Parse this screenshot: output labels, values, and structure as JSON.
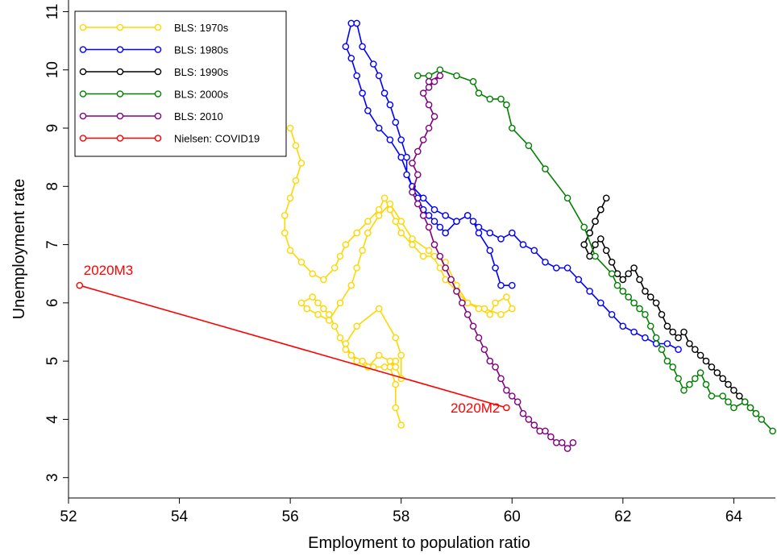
{
  "chart_data": {
    "type": "line",
    "xlabel": "Employment to population ratio",
    "ylabel": "Unemployment rate",
    "xlim": [
      52,
      64.75
    ],
    "ylim": [
      2.65,
      11.2
    ],
    "xticks": [
      52,
      54,
      56,
      58,
      60,
      62,
      64
    ],
    "yticks": [
      3,
      4,
      5,
      6,
      7,
      8,
      9,
      10,
      11
    ],
    "grid": false,
    "legend_position": "top-left",
    "marker": "hollow-circle",
    "series": [
      {
        "name": "BLS: 1970s",
        "color": "#FFD700",
        "x": [
          58.0,
          57.9,
          57.9,
          57.8,
          57.9,
          57.7,
          57.5,
          57.3,
          57.1,
          57.0,
          57.2,
          57.6,
          57.9,
          58.0,
          58.0,
          57.9,
          57.8,
          57.6,
          57.4,
          57.2,
          57.0,
          56.9,
          56.8,
          56.7,
          56.6,
          56.5,
          56.4,
          56.2,
          56.3,
          56.5,
          56.7,
          56.9,
          57.1,
          57.2,
          57.3,
          57.4,
          57.6,
          57.8,
          58.0,
          58.2,
          58.5,
          58.7,
          58.8,
          59.0,
          59.2,
          59.5,
          59.8,
          60.0,
          59.9,
          59.7,
          59.6,
          59.4,
          59.2,
          59.0,
          58.8,
          58.6,
          58.4,
          58.2,
          58.0,
          57.9,
          57.8,
          57.7,
          57.6,
          57.4,
          57.2,
          57.0,
          56.9,
          56.8,
          56.6,
          56.4,
          56.2,
          56.0,
          55.9,
          55.9,
          56.0,
          56.1,
          56.2,
          56.1,
          56.0
        ],
        "y": [
          3.9,
          4.2,
          4.6,
          4.9,
          5.0,
          4.9,
          4.9,
          5.0,
          5.1,
          5.3,
          5.6,
          5.9,
          5.4,
          5.1,
          4.7,
          4.9,
          5.0,
          5.1,
          4.9,
          5.0,
          5.2,
          5.4,
          5.6,
          5.8,
          5.9,
          6.0,
          6.1,
          6.0,
          5.9,
          5.8,
          5.7,
          6.0,
          6.3,
          6.6,
          6.9,
          7.2,
          7.5,
          7.7,
          7.4,
          7.1,
          6.9,
          6.6,
          6.4,
          6.2,
          6.0,
          5.9,
          5.8,
          5.9,
          6.1,
          6.0,
          5.8,
          5.9,
          6.0,
          6.3,
          6.7,
          6.8,
          6.8,
          7.0,
          7.2,
          7.4,
          7.6,
          7.8,
          7.6,
          7.4,
          7.2,
          7.0,
          6.8,
          6.6,
          6.4,
          6.5,
          6.7,
          6.9,
          7.2,
          7.5,
          7.8,
          8.1,
          8.4,
          8.7,
          9.0
        ]
      },
      {
        "name": "BLS: 1980s",
        "color": "#0000FF",
        "x": [
          60.0,
          59.8,
          59.7,
          59.6,
          59.4,
          59.3,
          59.2,
          59.0,
          58.8,
          58.6,
          58.4,
          58.2,
          58.0,
          57.8,
          57.6,
          57.4,
          57.3,
          57.2,
          57.1,
          57.0,
          57.1,
          57.2,
          57.3,
          57.5,
          57.6,
          57.7,
          57.8,
          57.9,
          58.0,
          58.1,
          58.1,
          58.2,
          58.3,
          58.4,
          58.5,
          58.6,
          58.7,
          58.8,
          59.0,
          59.2,
          59.4,
          59.6,
          59.8,
          60.0,
          60.2,
          60.4,
          60.6,
          60.8,
          61.0,
          61.2,
          61.4,
          61.6,
          61.8,
          62.0,
          62.2,
          62.4,
          62.6,
          62.8,
          63.0
        ],
        "y": [
          6.3,
          6.3,
          6.6,
          6.9,
          7.2,
          7.4,
          7.5,
          7.4,
          7.5,
          7.6,
          7.8,
          8.0,
          8.5,
          8.8,
          9.0,
          9.3,
          9.6,
          9.9,
          10.2,
          10.4,
          10.8,
          10.8,
          10.4,
          10.1,
          9.9,
          9.6,
          9.4,
          9.1,
          8.8,
          8.5,
          8.2,
          8.0,
          7.8,
          7.6,
          7.5,
          7.4,
          7.3,
          7.2,
          7.4,
          7.5,
          7.3,
          7.2,
          7.1,
          7.2,
          7.0,
          6.9,
          6.7,
          6.6,
          6.6,
          6.4,
          6.2,
          6.0,
          5.8,
          5.6,
          5.5,
          5.4,
          5.3,
          5.3,
          5.2
        ]
      },
      {
        "name": "BLS: 1990s",
        "color": "#000000",
        "x": [
          61.4,
          61.5,
          61.6,
          61.7,
          61.6,
          61.5,
          61.4,
          61.3,
          61.4,
          61.5,
          61.6,
          61.7,
          61.8,
          61.9,
          62.0,
          62.1,
          62.2,
          62.3,
          62.4,
          62.5,
          62.6,
          62.7,
          62.8,
          62.9,
          63.0,
          63.1,
          63.2,
          63.3,
          63.4,
          63.5,
          63.6,
          63.7,
          63.8,
          63.9,
          64.0,
          64.1,
          64.2,
          64.3,
          64.4
        ],
        "y": [
          7.2,
          7.4,
          7.6,
          7.8,
          7.6,
          7.4,
          7.2,
          7.0,
          6.8,
          7.0,
          7.1,
          6.9,
          6.7,
          6.5,
          6.4,
          6.5,
          6.6,
          6.4,
          6.2,
          6.1,
          6.0,
          5.8,
          5.6,
          5.5,
          5.4,
          5.5,
          5.3,
          5.2,
          5.1,
          5.0,
          4.9,
          4.8,
          4.7,
          4.6,
          4.5,
          4.4,
          4.3,
          4.2,
          4.1
        ]
      },
      {
        "name": "BLS: 2000s",
        "color": "#008000",
        "x": [
          64.7,
          64.5,
          64.4,
          64.3,
          64.2,
          64.0,
          63.9,
          63.8,
          63.6,
          63.5,
          63.4,
          63.3,
          63.2,
          63.1,
          63.0,
          62.9,
          62.8,
          62.7,
          62.6,
          62.5,
          62.4,
          62.3,
          62.2,
          62.1,
          62.0,
          61.9,
          61.8,
          61.5,
          61.3,
          61.0,
          60.6,
          60.3,
          60.0,
          59.9,
          59.8,
          59.6,
          59.4,
          59.3,
          59.0,
          58.7,
          58.5,
          58.3
        ],
        "y": [
          3.8,
          4.0,
          4.1,
          4.2,
          4.3,
          4.2,
          4.3,
          4.4,
          4.4,
          4.6,
          4.8,
          4.7,
          4.6,
          4.5,
          4.7,
          4.9,
          5.0,
          5.2,
          5.4,
          5.6,
          5.8,
          5.9,
          6.0,
          6.1,
          6.2,
          6.3,
          6.5,
          6.8,
          7.3,
          7.8,
          8.3,
          8.7,
          9.0,
          9.4,
          9.5,
          9.5,
          9.6,
          9.8,
          9.9,
          10.0,
          9.9,
          9.9
        ]
      },
      {
        "name": "BLS: 2010",
        "color": "#800080",
        "x": [
          58.5,
          58.7,
          58.6,
          58.5,
          58.4,
          58.5,
          58.6,
          58.5,
          58.4,
          58.3,
          58.2,
          58.3,
          58.2,
          58.3,
          58.4,
          58.5,
          58.6,
          58.7,
          58.8,
          58.9,
          59.0,
          59.1,
          59.2,
          59.3,
          59.4,
          59.5,
          59.6,
          59.7,
          59.8,
          59.9,
          60.0,
          60.1,
          60.2,
          60.3,
          60.4,
          60.5,
          60.6,
          60.7,
          60.8,
          60.9,
          61.0,
          61.1
        ],
        "y": [
          9.8,
          9.9,
          9.8,
          9.7,
          9.6,
          9.4,
          9.2,
          9.0,
          8.8,
          8.6,
          8.4,
          8.2,
          7.9,
          7.7,
          7.5,
          7.3,
          7.0,
          6.8,
          6.6,
          6.4,
          6.2,
          6.0,
          5.8,
          5.6,
          5.4,
          5.2,
          5.0,
          4.9,
          4.7,
          4.5,
          4.4,
          4.3,
          4.1,
          4.0,
          3.9,
          3.8,
          3.8,
          3.7,
          3.6,
          3.6,
          3.5,
          3.6
        ]
      },
      {
        "name": "Nielsen: COVID19",
        "color": "#FF0000",
        "x": [
          59.9,
          52.2
        ],
        "y": [
          4.2,
          6.3
        ]
      }
    ],
    "annotations": [
      {
        "text": "2020M3",
        "x": 52.2,
        "y": 6.3,
        "color": "#FF0000"
      },
      {
        "text": "2020M2",
        "x": 59.9,
        "y": 4.2,
        "color": "#FF0000"
      }
    ]
  }
}
